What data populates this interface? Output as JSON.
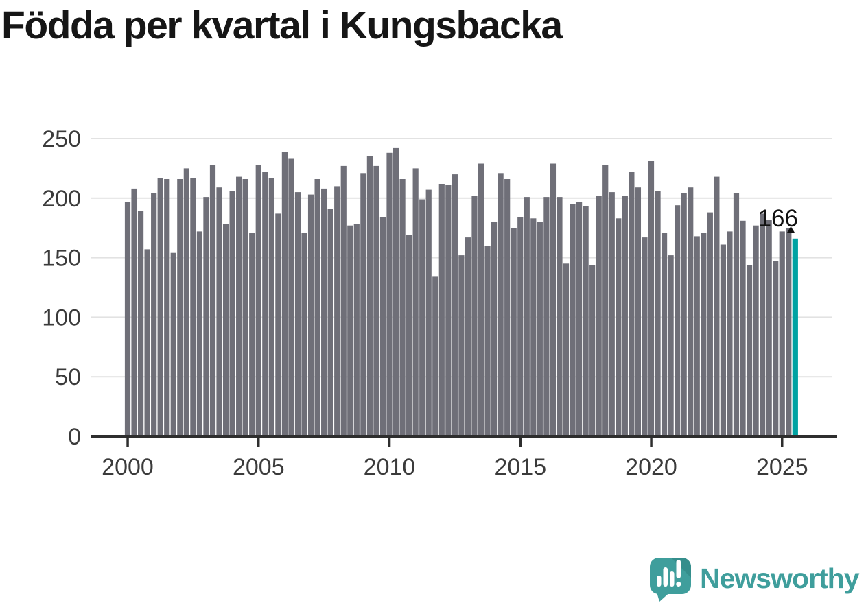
{
  "title": "Födda per kvartal i Kungsbacka",
  "chart_data": {
    "type": "bar",
    "title": "Födda per kvartal i Kungsbacka",
    "x_start": "2000 Q1",
    "x_end": "2025 Q3",
    "frequency": "quarterly",
    "series": [
      {
        "name": "Födda per kvartal",
        "values": [
          197,
          208,
          189,
          157,
          204,
          217,
          216,
          154,
          216,
          225,
          217,
          172,
          201,
          228,
          209,
          178,
          206,
          218,
          216,
          171,
          228,
          222,
          217,
          187,
          239,
          233,
          205,
          171,
          203,
          216,
          208,
          191,
          210,
          227,
          177,
          178,
          221,
          235,
          227,
          184,
          238,
          242,
          216,
          169,
          225,
          199,
          207,
          134,
          212,
          211,
          220,
          152,
          167,
          202,
          229,
          160,
          180,
          221,
          216,
          175,
          184,
          201,
          183,
          180,
          201,
          229,
          201,
          145,
          195,
          197,
          193,
          144,
          202,
          228,
          205,
          183,
          202,
          222,
          209,
          167,
          231,
          206,
          171,
          152,
          194,
          204,
          209,
          168,
          171,
          188,
          218,
          161,
          172,
          204,
          181,
          144,
          177,
          187,
          182,
          147,
          172,
          175,
          166
        ]
      }
    ],
    "x_tick_labels": [
      "2000",
      "2005",
      "2010",
      "2015",
      "2020",
      "2025"
    ],
    "y_ticks": [
      0,
      50,
      100,
      150,
      200,
      250
    ],
    "ylim": [
      0,
      250
    ],
    "grid": "horizontal",
    "legend": "none",
    "highlight_index": 102,
    "annotation": {
      "text": "166"
    },
    "colors": {
      "bar": "#6F6F78",
      "highlight": "#00A2A2",
      "grid": "#E2E2E2",
      "axis": "#2E2E2E",
      "tick_text": "#3B3B3B",
      "annotation_text": "#111111"
    }
  },
  "branding": {
    "logo_text": "Newsworthy",
    "logo_icon": "newsworthy-speech-bubble-bar-chart-icon",
    "brand_color": "#3F9E9C"
  }
}
